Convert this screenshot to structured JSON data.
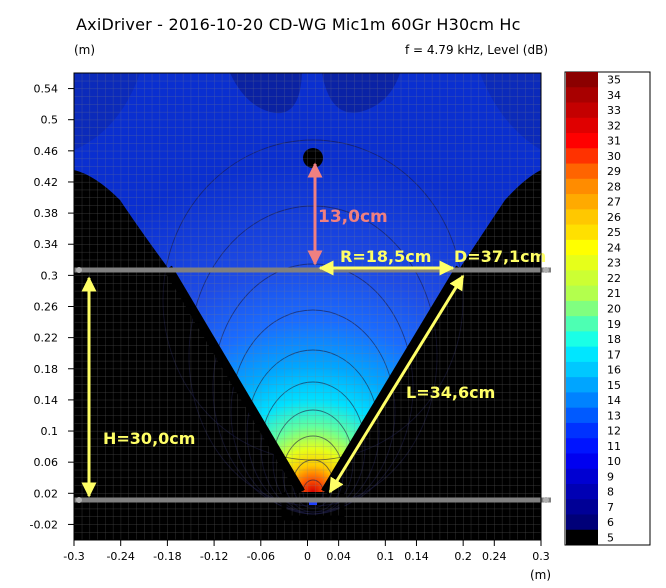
{
  "header": {
    "title": "AxiDriver - 2016-10-20 CD-WG Mic1m 60Gr H30cm Hc",
    "unit_left": "(m)",
    "subtitle": "f = 4.79 kHz, Level  (dB)",
    "unit_bottom": "(m)"
  },
  "chart_data": {
    "type": "heatmap",
    "title": "AxiDriver - 2016-10-20 CD-WG Mic1m 60Gr H30cm Hc",
    "subtitle": "f = 4.79 kHz, Level  (dB)",
    "xlabel": "(m)",
    "ylabel": "(m)",
    "xlim": [
      -0.3,
      0.3
    ],
    "ylim": [
      -0.04,
      0.56
    ],
    "x_ticks": [
      "-0.3",
      "-0.24",
      "-0.18",
      "-0.12",
      "-0.06",
      "0",
      "0.04",
      "0.1",
      "0.14",
      "0.2",
      "0.24",
      "0.3"
    ],
    "x_tick_values": [
      -0.3,
      -0.24,
      -0.18,
      -0.12,
      -0.06,
      0,
      0.04,
      0.1,
      0.14,
      0.2,
      0.24,
      0.3
    ],
    "y_ticks": [
      "0.54",
      "0.5",
      "0.46",
      "0.42",
      "0.38",
      "0.34",
      "0.3",
      "0.26",
      "0.22",
      "0.18",
      "0.14",
      "0.1",
      "0.06",
      "0.02",
      "-0.02"
    ],
    "y_tick_values": [
      0.54,
      0.5,
      0.46,
      0.42,
      0.38,
      0.34,
      0.3,
      0.26,
      0.22,
      0.18,
      0.14,
      0.1,
      0.06,
      0.02,
      -0.02
    ],
    "grid": true,
    "colorbar": {
      "labels": [
        "35",
        "34",
        "33",
        "32",
        "31",
        "30",
        "29",
        "28",
        "27",
        "26",
        "25",
        "24",
        "23",
        "22",
        "21",
        "20",
        "19",
        "18",
        "17",
        "16",
        "15",
        "14",
        "13",
        "12",
        "11",
        "10",
        "9",
        "8",
        "7",
        "6",
        "5"
      ],
      "colors": [
        "#8b0000",
        "#a80000",
        "#c40000",
        "#e00000",
        "#ff0000",
        "#ff3200",
        "#ff6400",
        "#ff8c00",
        "#ffaa00",
        "#ffc800",
        "#ffe000",
        "#ffff00",
        "#e6ff1a",
        "#ccff33",
        "#b3ff4d",
        "#80ff80",
        "#4dffb3",
        "#1affe6",
        "#00e6ff",
        "#00c8ff",
        "#00a5ff",
        "#0082ff",
        "#005aff",
        "#0032ff",
        "#0014ff",
        "#0000f0",
        "#0000d2",
        "#0000b4",
        "#000096",
        "#000078",
        "#000000"
      ]
    },
    "annotations": [
      {
        "text": "13,0cm",
        "color": "#f08080"
      },
      {
        "text": "R=18,5cm",
        "color": "#ffff66"
      },
      {
        "text": "D=37,1cm",
        "color": "#ffff66"
      },
      {
        "text": "L=34,6cm",
        "color": "#ffff66"
      },
      {
        "text": "H=30,0cm",
        "color": "#ffff66"
      }
    ],
    "horizontal_lines_y": [
      0.3,
      0.0
    ],
    "waveguide": {
      "apex": [
        0,
        0.005
      ],
      "mouth_left": [
        -0.185,
        0.3
      ],
      "mouth_right": [
        0.185,
        0.3
      ]
    }
  }
}
